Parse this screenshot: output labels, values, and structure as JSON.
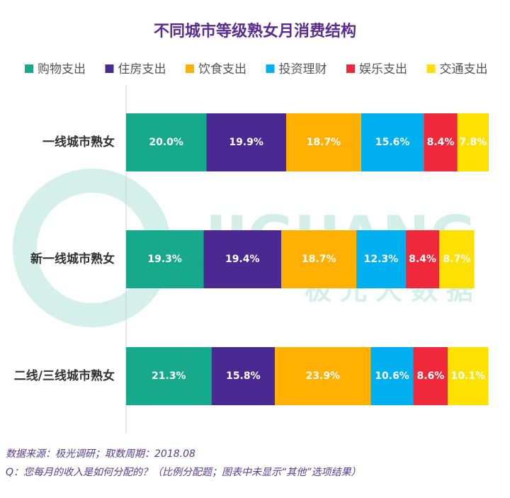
{
  "chart_data": {
    "type": "stacked-barh",
    "title": "不同城市等级熟女月消费结构",
    "categories": [
      "一线城市熟女",
      "新一线城市熟女",
      "二线/三线城市熟女"
    ],
    "series": [
      {
        "name": "购物支出",
        "color": "#17a98b",
        "values": [
          20.0,
          19.3,
          21.3
        ],
        "value_labels": [
          "20.0%",
          "19.3%",
          "21.3%"
        ]
      },
      {
        "name": "住房支出",
        "color": "#4a2a92",
        "values": [
          19.9,
          19.4,
          15.8
        ],
        "value_labels": [
          "19.9%",
          "19.4%",
          "15.8%"
        ]
      },
      {
        "name": "饮食支出",
        "color": "#ffb000",
        "values": [
          18.7,
          18.7,
          23.9
        ],
        "value_labels": [
          "18.7%",
          "18.7%",
          "23.9%"
        ]
      },
      {
        "name": "投资理财",
        "color": "#00aff0",
        "values": [
          15.6,
          12.3,
          10.6
        ],
        "value_labels": [
          "15.6%",
          "12.3%",
          "10.6%"
        ]
      },
      {
        "name": "娱乐支出",
        "color": "#f0283c",
        "values": [
          8.4,
          8.4,
          8.6
        ],
        "value_labels": [
          "8.4%",
          "8.4%",
          "8.6%"
        ]
      },
      {
        "name": "交通支出",
        "color": "#ffe100",
        "values": [
          7.8,
          8.7,
          10.1
        ],
        "value_labels": [
          "7.8%",
          "8.7%",
          "10.1%"
        ]
      }
    ],
    "legend": "top",
    "watermark": {
      "brand": "JIGUANG",
      "name": "极光大数据"
    },
    "source": "数据来源：极光调研；取数周期：2018.08",
    "note": "Q：您每月的收入是如何分配的？（比例分配题；图表中未显示“其他”选项结果）"
  }
}
